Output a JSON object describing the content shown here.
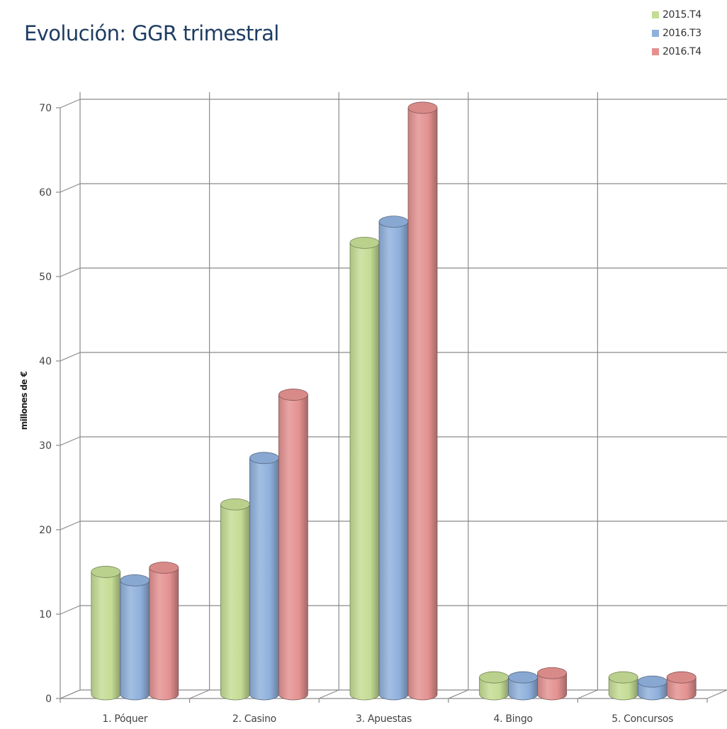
{
  "chart_data": {
    "type": "bar",
    "title": "Evolución: GGR trimestral",
    "ylabel": "millones de €",
    "xlabel": "",
    "categories": [
      "1. Póquer",
      "2. Casino",
      "3. Apuestas",
      "4. Bingo",
      "5. Concursos"
    ],
    "series": [
      {
        "name": "2015.T4",
        "values": [
          14.5,
          22.5,
          53.5,
          2.0,
          2.0
        ],
        "color": "#c4dc94"
      },
      {
        "name": "2016.T3",
        "values": [
          13.5,
          28.0,
          56.0,
          2.0,
          1.5
        ],
        "color": "#8fb0dc"
      },
      {
        "name": "2016.T4",
        "values": [
          15.0,
          35.5,
          69.5,
          2.5,
          2.0
        ],
        "color": "#e39190"
      }
    ],
    "yticks": [
      0,
      10,
      20,
      30,
      40,
      50,
      60,
      70
    ],
    "ylim": [
      0,
      70
    ],
    "grid": true,
    "legend_position": "top-right",
    "style": "3d-cylinder"
  }
}
